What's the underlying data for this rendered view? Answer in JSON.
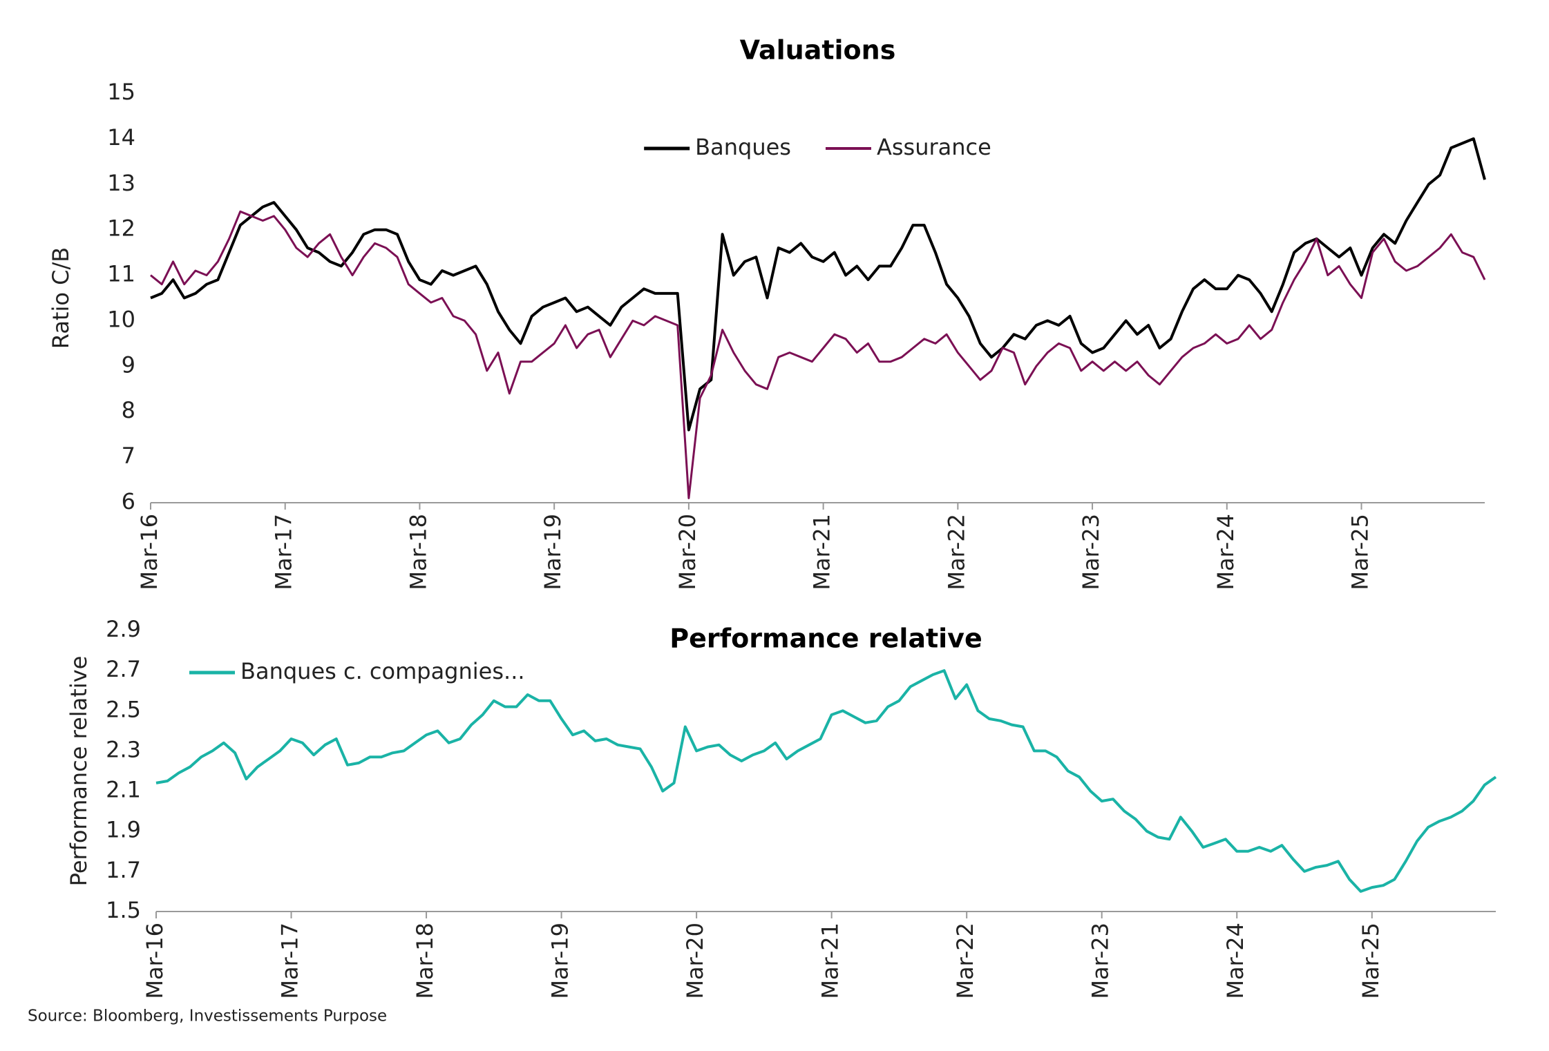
{
  "chart_data": [
    {
      "type": "line",
      "title": "Valuations",
      "y_label": "Ratio C/B",
      "legend": "top-center",
      "x": [
        "2016-03",
        "2016-04",
        "2016-05",
        "2016-06",
        "2016-07",
        "2016-08",
        "2016-09",
        "2016-10",
        "2016-11",
        "2016-12",
        "2017-01",
        "2017-02",
        "2017-03",
        "2017-04",
        "2017-05",
        "2017-06",
        "2017-07",
        "2017-08",
        "2017-09",
        "2017-10",
        "2017-11",
        "2017-12",
        "2018-01",
        "2018-02",
        "2018-03",
        "2018-04",
        "2018-05",
        "2018-06",
        "2018-07",
        "2018-08",
        "2018-09",
        "2018-10",
        "2018-11",
        "2018-12",
        "2019-01",
        "2019-02",
        "2019-03",
        "2019-04",
        "2019-05",
        "2019-06",
        "2019-07",
        "2019-08",
        "2019-09",
        "2019-10",
        "2019-11",
        "2019-12",
        "2020-01",
        "2020-02",
        "2020-03",
        "2020-04",
        "2020-05",
        "2020-06",
        "2020-07",
        "2020-08",
        "2020-09",
        "2020-10",
        "2020-11",
        "2020-12",
        "2021-01",
        "2021-02",
        "2021-03",
        "2021-04",
        "2021-05",
        "2021-06",
        "2021-07",
        "2021-08",
        "2021-09",
        "2021-10",
        "2021-11",
        "2021-12",
        "2022-01",
        "2022-02",
        "2022-03",
        "2022-04",
        "2022-05",
        "2022-06",
        "2022-07",
        "2022-08",
        "2022-09",
        "2022-10",
        "2022-11",
        "2022-12",
        "2023-01",
        "2023-02",
        "2023-03",
        "2023-04",
        "2023-05",
        "2023-06",
        "2023-07",
        "2023-08",
        "2023-09",
        "2023-10",
        "2023-11",
        "2023-12",
        "2024-01",
        "2024-02",
        "2024-03",
        "2024-04",
        "2024-05",
        "2024-06",
        "2024-07",
        "2024-08",
        "2024-09",
        "2024-10",
        "2024-11",
        "2024-12",
        "2025-01",
        "2025-02",
        "2025-03",
        "2025-04",
        "2025-05",
        "2025-06",
        "2025-07",
        "2025-08",
        "2025-09",
        "2025-10",
        "2025-11",
        "2025-12",
        "2026-01",
        "2026-02"
      ],
      "xlim": [
        "2016-03",
        "2026-02"
      ],
      "xticks": [
        {
          "value": "2016-03",
          "label": "Mar-16"
        },
        {
          "value": "2017-03",
          "label": "Mar-17"
        },
        {
          "value": "2018-03",
          "label": "Mar-18"
        },
        {
          "value": "2019-03",
          "label": "Mar-19"
        },
        {
          "value": "2020-03",
          "label": "Mar-20"
        },
        {
          "value": "2021-03",
          "label": "Mar-21"
        },
        {
          "value": "2022-03",
          "label": "Mar-22"
        },
        {
          "value": "2023-03",
          "label": "Mar-23"
        },
        {
          "value": "2024-03",
          "label": "Mar-24"
        },
        {
          "value": "2025-03",
          "label": "Mar-25"
        }
      ],
      "ylim": [
        6,
        15
      ],
      "yticks": [
        6,
        7,
        8,
        9,
        10,
        11,
        12,
        13,
        14,
        15
      ],
      "series": [
        {
          "name": "Banques",
          "color": "#000000",
          "values": [
            10.5,
            10.6,
            10.9,
            10.5,
            10.6,
            10.8,
            10.9,
            11.5,
            12.1,
            12.3,
            12.5,
            12.6,
            12.3,
            12.0,
            11.6,
            11.5,
            11.3,
            11.2,
            11.5,
            11.9,
            12.0,
            12.0,
            11.9,
            11.3,
            10.9,
            10.8,
            11.1,
            11.0,
            11.1,
            11.2,
            10.8,
            10.2,
            9.8,
            9.5,
            10.1,
            10.3,
            10.4,
            10.5,
            10.2,
            10.3,
            10.1,
            9.9,
            10.3,
            10.5,
            10.7,
            10.6,
            10.6,
            10.6,
            7.6,
            8.5,
            8.7,
            11.9,
            11.0,
            11.3,
            11.4,
            10.5,
            11.6,
            11.5,
            11.7,
            11.4,
            11.3,
            11.5,
            11.0,
            11.2,
            10.9,
            11.2,
            11.2,
            11.6,
            12.1,
            12.1,
            11.5,
            10.8,
            10.5,
            10.1,
            9.5,
            9.2,
            9.4,
            9.7,
            9.6,
            9.9,
            10.0,
            9.9,
            10.1,
            9.5,
            9.3,
            9.4,
            9.7,
            10.0,
            9.7,
            9.9,
            9.4,
            9.6,
            10.2,
            10.7,
            10.9,
            10.7,
            10.7,
            11.0,
            10.9,
            10.6,
            10.2,
            10.8,
            11.5,
            11.7,
            11.8,
            11.6,
            11.4,
            11.6,
            11.0,
            11.6,
            11.9,
            11.7,
            12.2,
            12.6,
            13.0,
            13.2,
            13.8,
            13.9,
            14.0,
            13.1
          ]
        },
        {
          "name": "Assurance",
          "color": "#7b1054",
          "values": [
            11.0,
            10.8,
            11.3,
            10.8,
            11.1,
            11.0,
            11.3,
            11.8,
            12.4,
            12.3,
            12.2,
            12.3,
            12.0,
            11.6,
            11.4,
            11.7,
            11.9,
            11.4,
            11.0,
            11.4,
            11.7,
            11.6,
            11.4,
            10.8,
            10.6,
            10.4,
            10.5,
            10.1,
            10.0,
            9.7,
            8.9,
            9.3,
            8.4,
            9.1,
            9.1,
            9.3,
            9.5,
            9.9,
            9.4,
            9.7,
            9.8,
            9.2,
            9.6,
            10.0,
            9.9,
            10.1,
            10.0,
            9.9,
            6.1,
            8.3,
            8.8,
            9.8,
            9.3,
            8.9,
            8.6,
            8.5,
            9.2,
            9.3,
            9.2,
            9.1,
            9.4,
            9.7,
            9.6,
            9.3,
            9.5,
            9.1,
            9.1,
            9.2,
            9.4,
            9.6,
            9.5,
            9.7,
            9.3,
            9.0,
            8.7,
            8.9,
            9.4,
            9.3,
            8.6,
            9.0,
            9.3,
            9.5,
            9.4,
            8.9,
            9.1,
            8.9,
            9.1,
            8.9,
            9.1,
            8.8,
            8.6,
            8.9,
            9.2,
            9.4,
            9.5,
            9.7,
            9.5,
            9.6,
            9.9,
            9.6,
            9.8,
            10.4,
            10.9,
            11.3,
            11.8,
            11.0,
            11.2,
            10.8,
            10.5,
            11.5,
            11.8,
            11.3,
            11.1,
            11.2,
            11.4,
            11.6,
            11.9,
            11.5,
            11.4,
            10.9
          ]
        }
      ]
    },
    {
      "type": "line",
      "title": "Performance relative",
      "y_label": "Performance relative",
      "legend": "top-left",
      "x": [
        "2016-03",
        "2016-04",
        "2016-05",
        "2016-06",
        "2016-07",
        "2016-08",
        "2016-09",
        "2016-10",
        "2016-11",
        "2016-12",
        "2017-01",
        "2017-02",
        "2017-03",
        "2017-04",
        "2017-05",
        "2017-06",
        "2017-07",
        "2017-08",
        "2017-09",
        "2017-10",
        "2017-11",
        "2017-12",
        "2018-01",
        "2018-02",
        "2018-03",
        "2018-04",
        "2018-05",
        "2018-06",
        "2018-07",
        "2018-08",
        "2018-09",
        "2018-10",
        "2018-11",
        "2018-12",
        "2019-01",
        "2019-02",
        "2019-03",
        "2019-04",
        "2019-05",
        "2019-06",
        "2019-07",
        "2019-08",
        "2019-09",
        "2019-10",
        "2019-11",
        "2019-12",
        "2020-01",
        "2020-02",
        "2020-03",
        "2020-04",
        "2020-05",
        "2020-06",
        "2020-07",
        "2020-08",
        "2020-09",
        "2020-10",
        "2020-11",
        "2020-12",
        "2021-01",
        "2021-02",
        "2021-03",
        "2021-04",
        "2021-05",
        "2021-06",
        "2021-07",
        "2021-08",
        "2021-09",
        "2021-10",
        "2021-11",
        "2021-12",
        "2022-01",
        "2022-02",
        "2022-03",
        "2022-04",
        "2022-05",
        "2022-06",
        "2022-07",
        "2022-08",
        "2022-09",
        "2022-10",
        "2022-11",
        "2022-12",
        "2023-01",
        "2023-02",
        "2023-03",
        "2023-04",
        "2023-05",
        "2023-06",
        "2023-07",
        "2023-08",
        "2023-09",
        "2023-10",
        "2023-11",
        "2023-12",
        "2024-01",
        "2024-02",
        "2024-03",
        "2024-04",
        "2024-05",
        "2024-06",
        "2024-07",
        "2024-08",
        "2024-09",
        "2024-10",
        "2024-11",
        "2024-12",
        "2025-01",
        "2025-02",
        "2025-03",
        "2025-04",
        "2025-05",
        "2025-06",
        "2025-07",
        "2025-08",
        "2025-09",
        "2025-10",
        "2025-11",
        "2025-12",
        "2026-01",
        "2026-02"
      ],
      "xlim": [
        "2016-03",
        "2026-02"
      ],
      "xticks": [
        {
          "value": "2016-03",
          "label": "Mar-16"
        },
        {
          "value": "2017-03",
          "label": "Mar-17"
        },
        {
          "value": "2018-03",
          "label": "Mar-18"
        },
        {
          "value": "2019-03",
          "label": "Mar-19"
        },
        {
          "value": "2020-03",
          "label": "Mar-20"
        },
        {
          "value": "2021-03",
          "label": "Mar-21"
        },
        {
          "value": "2022-03",
          "label": "Mar-22"
        },
        {
          "value": "2023-03",
          "label": "Mar-23"
        },
        {
          "value": "2024-03",
          "label": "Mar-24"
        },
        {
          "value": "2025-03",
          "label": "Mar-25"
        }
      ],
      "ylim": [
        1.5,
        2.9
      ],
      "yticks": [
        1.5,
        1.7,
        1.9,
        2.1,
        2.3,
        2.5,
        2.7,
        2.9
      ],
      "series": [
        {
          "name": "Banques c. compagnies...",
          "color": "#1ab3a6",
          "values": [
            2.14,
            2.15,
            2.19,
            2.22,
            2.27,
            2.3,
            2.34,
            2.29,
            2.16,
            2.22,
            2.26,
            2.3,
            2.36,
            2.34,
            2.28,
            2.33,
            2.36,
            2.23,
            2.24,
            2.27,
            2.27,
            2.29,
            2.3,
            2.34,
            2.38,
            2.4,
            2.34,
            2.36,
            2.43,
            2.48,
            2.55,
            2.52,
            2.52,
            2.58,
            2.55,
            2.55,
            2.46,
            2.38,
            2.4,
            2.35,
            2.36,
            2.33,
            2.32,
            2.31,
            2.22,
            2.1,
            2.14,
            2.42,
            2.3,
            2.32,
            2.33,
            2.28,
            2.25,
            2.28,
            2.3,
            2.34,
            2.26,
            2.3,
            2.33,
            2.36,
            2.48,
            2.5,
            2.47,
            2.44,
            2.45,
            2.52,
            2.55,
            2.62,
            2.65,
            2.68,
            2.7,
            2.56,
            2.63,
            2.5,
            2.46,
            2.45,
            2.43,
            2.42,
            2.3,
            2.3,
            2.27,
            2.2,
            2.17,
            2.1,
            2.05,
            2.06,
            2.0,
            1.96,
            1.9,
            1.87,
            1.86,
            1.97,
            1.9,
            1.82,
            1.84,
            1.86,
            1.8,
            1.8,
            1.82,
            1.8,
            1.83,
            1.76,
            1.7,
            1.72,
            1.73,
            1.75,
            1.66,
            1.6,
            1.62,
            1.63,
            1.66,
            1.75,
            1.85,
            1.92,
            1.95,
            1.97,
            2.0,
            2.05,
            2.13,
            2.17
          ]
        }
      ]
    }
  ],
  "source": "Source: Bloomberg, Investissements Purpose"
}
